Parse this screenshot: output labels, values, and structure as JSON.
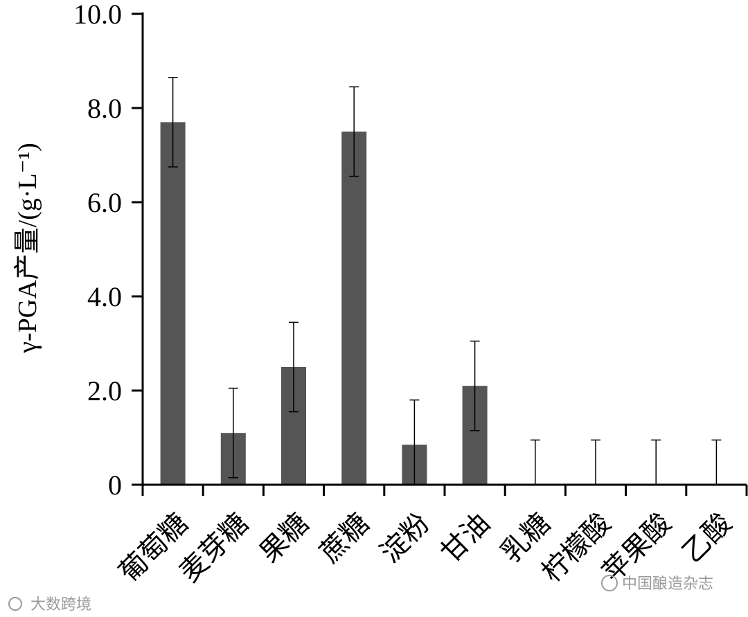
{
  "chart_data": {
    "type": "bar",
    "categories": [
      "葡萄糖",
      "麦芽糖",
      "果糖",
      "蔗糖",
      "淀粉",
      "甘油",
      "乳糖",
      "柠檬酸",
      "苹果酸",
      "乙酸"
    ],
    "values": [
      7.7,
      1.1,
      2.5,
      7.5,
      0.85,
      2.1,
      0,
      0,
      0,
      0
    ],
    "errors": [
      0.95,
      0.95,
      0.95,
      0.95,
      0.95,
      0.95,
      0.95,
      0.95,
      0.95,
      0.95
    ],
    "ylabel": "γ-PGA产量/(g·L⁻¹)",
    "ylim": [
      0,
      10
    ],
    "yticks": [
      "0",
      "2.0",
      "4.0",
      "6.0",
      "8.0",
      "10.0"
    ],
    "bar_color": "#555555",
    "grid": false
  },
  "watermarks": {
    "left": "大数跨境",
    "right": "中国酿造杂志"
  }
}
